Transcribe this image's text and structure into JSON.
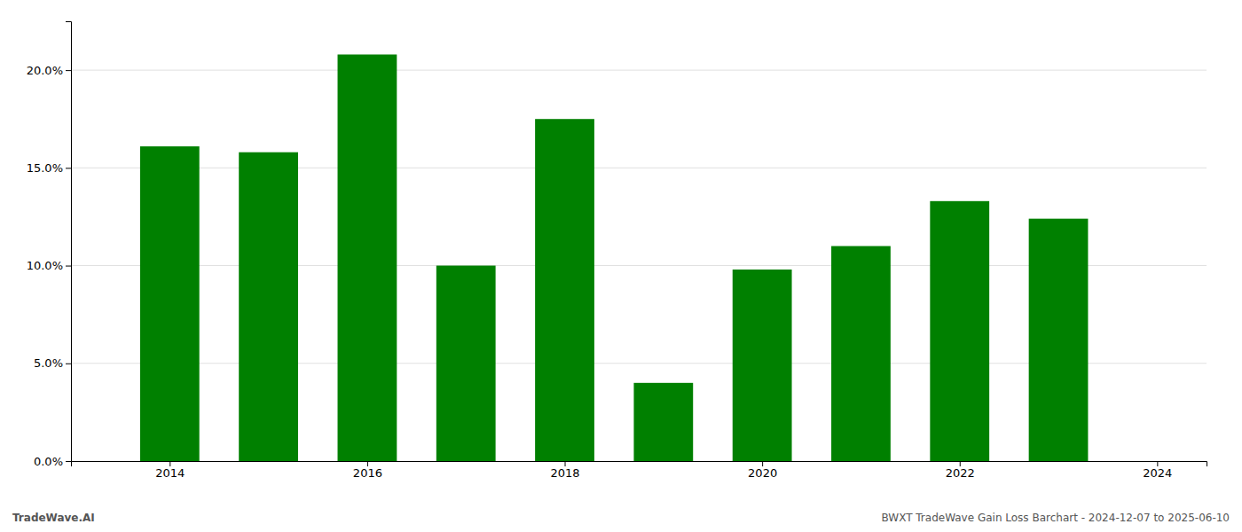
{
  "chart_data": {
    "type": "bar",
    "x": [
      2014,
      2015,
      2016,
      2017,
      2018,
      2019,
      2020,
      2021,
      2022,
      2023
    ],
    "values": [
      0.161,
      0.158,
      0.208,
      0.1,
      0.175,
      0.04,
      0.098,
      0.11,
      0.133,
      0.124
    ],
    "color": "#008000",
    "xlim": [
      2013.0,
      2024.5
    ],
    "xticks": [
      2014,
      2016,
      2018,
      2020,
      2022,
      2024
    ],
    "ylim": [
      0,
      0.225
    ],
    "yticks": [
      {
        "value": 0.0,
        "label": "0.0%"
      },
      {
        "value": 0.05,
        "label": "5.0%"
      },
      {
        "value": 0.1,
        "label": "10.0%"
      },
      {
        "value": 0.15,
        "label": "15.0%"
      },
      {
        "value": 0.2,
        "label": "20.0%"
      }
    ],
    "grid": "y",
    "annotations": [
      "TradeWave.AI",
      "BWXT TradeWave Gain Loss Barchart - 2024-12-07 to 2025-06-10"
    ]
  }
}
